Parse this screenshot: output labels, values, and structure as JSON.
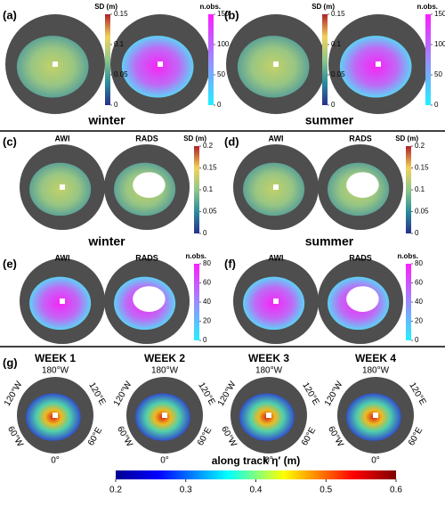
{
  "panel_labels": [
    "(a)",
    "(b)",
    "(c)",
    "(d)",
    "(e)",
    "(f)",
    "(g)"
  ],
  "seasons": [
    "winter",
    "summer"
  ],
  "dataset_labels": [
    "AWI",
    "RADS"
  ],
  "colorbars": [
    {
      "title": "SD (m)",
      "range": [
        0,
        0.15
      ],
      "ticks": [
        0,
        0.05,
        0.1,
        0.15
      ]
    },
    {
      "title": "n.obs.",
      "range": [
        0,
        150
      ],
      "ticks": [
        0,
        50,
        100,
        150
      ]
    },
    {
      "title": "SD (m)",
      "range": [
        0,
        0.2
      ],
      "ticks": [
        0,
        0.05,
        0.1,
        0.15,
        0.2
      ]
    },
    {
      "title": "n.obs.",
      "range": [
        0,
        80
      ],
      "ticks": [
        0,
        20,
        40,
        60,
        80
      ]
    },
    {
      "title": "along track η′ (m)",
      "range": [
        0.2,
        0.6
      ],
      "ticks": [
        0.2,
        0.3,
        0.4,
        0.5,
        0.6
      ]
    }
  ],
  "weeks": [
    "WEEK 1",
    "WEEK 2",
    "WEEK 3",
    "WEEK 4"
  ],
  "longitudes": {
    "top": "180°W",
    "upper_left": "120°W",
    "upper_right": "120°E",
    "lower_left": "60°W",
    "lower_right": "60°E",
    "bottom": "0°"
  }
}
